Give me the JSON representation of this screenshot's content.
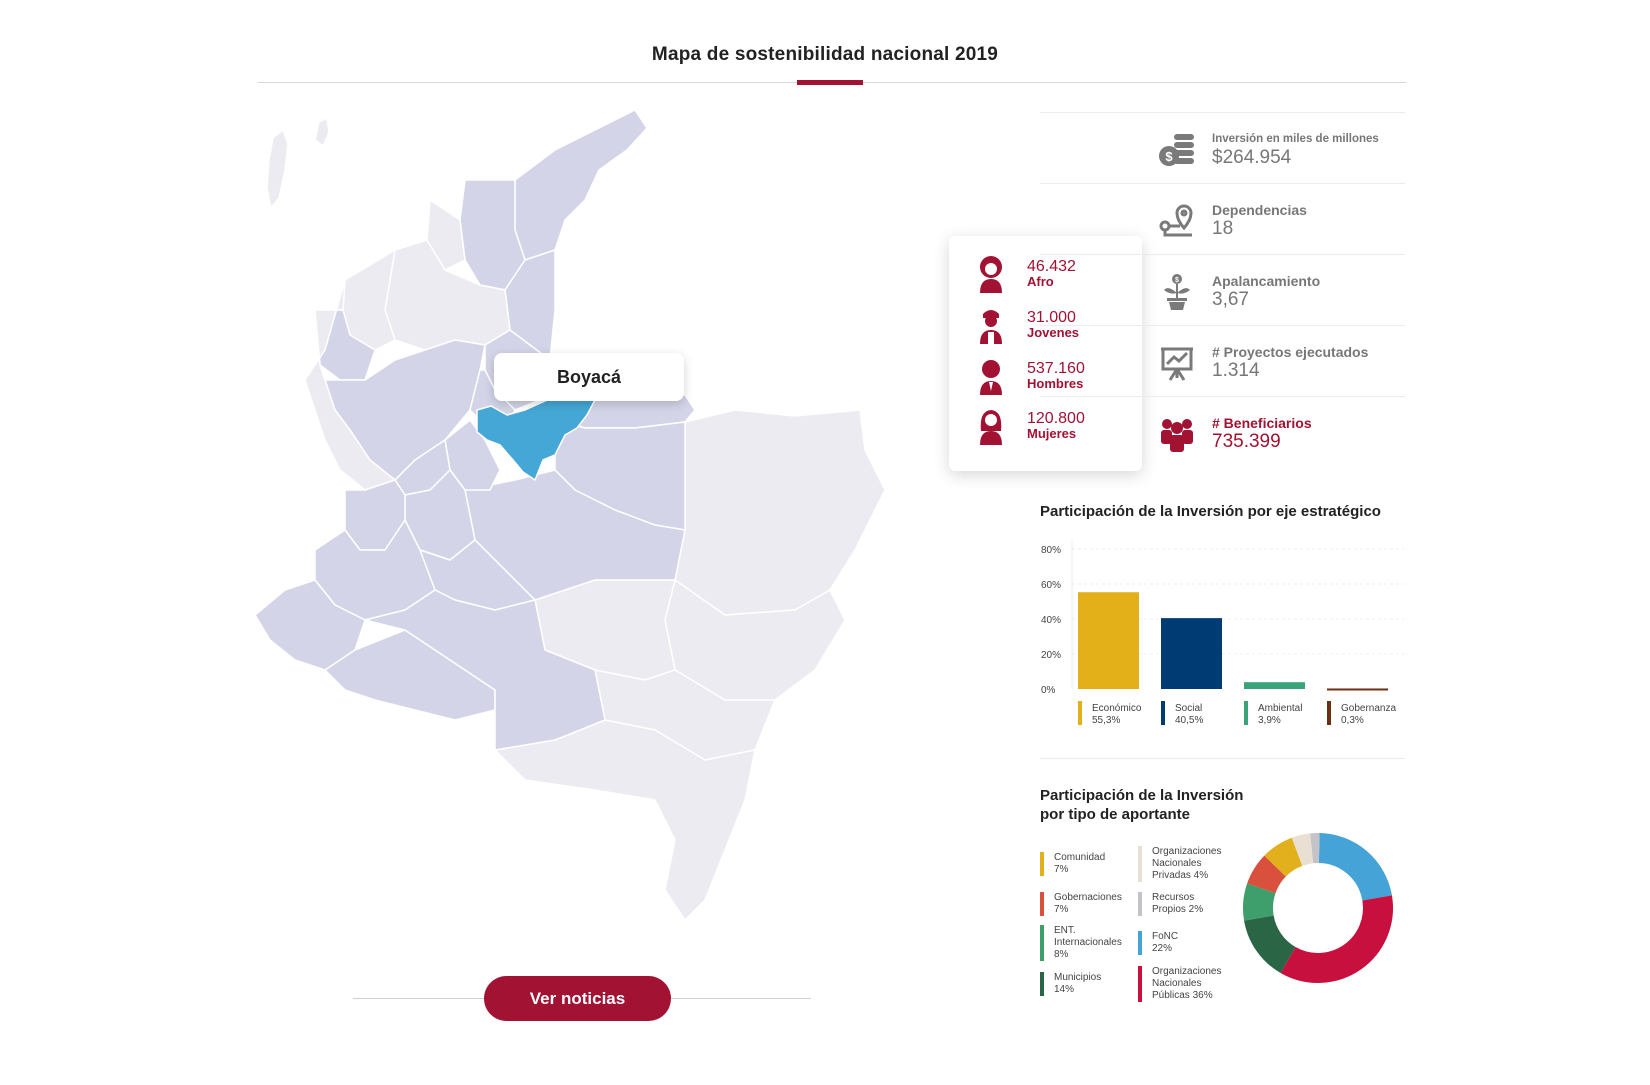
{
  "title": "Mapa de sostenibilidad nacional 2019",
  "selected_region": "Boyacá",
  "button": "Ver noticias",
  "demographics": [
    {
      "value": "46.432",
      "label": "Afro",
      "icon": "afro-person-icon"
    },
    {
      "value": "31.000",
      "label": "Jovenes",
      "icon": "young-person-icon"
    },
    {
      "value": "537.160",
      "label": "Hombres",
      "icon": "man-icon"
    },
    {
      "value": "120.800",
      "label": "Mujeres",
      "icon": "woman-icon"
    }
  ],
  "stats": [
    {
      "label": "Inversión en miles de millones",
      "value": "$264.954",
      "icon": "coins-icon"
    },
    {
      "label": "Dependencias",
      "value": "18",
      "icon": "location-route-icon"
    },
    {
      "label": "Apalancamiento",
      "value": "3,67",
      "icon": "money-plant-icon"
    },
    {
      "label": "# Proyectos ejecutados",
      "value": "1.314",
      "icon": "presentation-chart-icon"
    },
    {
      "label": "# Beneficiarios",
      "value": "735.399",
      "icon": "people-group-icon"
    }
  ],
  "colors": {
    "accent": "#a11233",
    "map_region": "#d3d4e8",
    "map_other": "#ebebf1",
    "map_selected": "#45a7d5"
  },
  "chart_data": [
    {
      "type": "bar",
      "title": "Participación de la Inversión por eje estratégico",
      "categories": [
        "Económico",
        "Social",
        "Ambiental",
        "Gobernanza"
      ],
      "values": [
        55.3,
        40.5,
        3.9,
        0.3
      ],
      "value_labels": [
        "55,3%",
        "40,5%",
        "3,9%",
        "0,3%"
      ],
      "colors": [
        "#e3b019",
        "#003b73",
        "#3ba37a",
        "#6b2f14"
      ],
      "yticks": [
        "80%",
        "60%",
        "40%",
        "20%",
        "0%"
      ],
      "ylim": [
        0,
        80
      ],
      "grid": true
    },
    {
      "type": "pie",
      "title": "Participación de la Inversión\npor tipo de aportante",
      "title_lines": [
        "Participación de la Inversión",
        "por tipo de aportante"
      ],
      "slices": [
        {
          "label": "FoNC",
          "pct_label": "22%",
          "value": 22,
          "color": "#46a3d7"
        },
        {
          "label": "Organizaciones Nacionales Públicas",
          "pct_label": "36%",
          "value": 36,
          "color": "#c8103e"
        },
        {
          "label": "Municipios",
          "pct_label": "14%",
          "value": 14,
          "color": "#2a6645"
        },
        {
          "label": "ENT. Internacionales",
          "pct_label": "8%",
          "value": 8,
          "color": "#3e9e6c"
        },
        {
          "label": "Gobernaciones",
          "pct_label": "7%",
          "value": 7,
          "color": "#d9503c"
        },
        {
          "label": "Comunidad",
          "pct_label": "7%",
          "value": 7,
          "color": "#e1b01c"
        },
        {
          "label": "Organizaciones Nacionales Privadas",
          "pct_label": "4%",
          "value": 4,
          "color": "#e9dfd2"
        },
        {
          "label": "Recursos Propios",
          "pct_label": "2%",
          "value": 2,
          "color": "#c4c4c8"
        }
      ],
      "legend": [
        {
          "lines": [
            "Comunidad",
            "7%"
          ],
          "color": "#e1b01c"
        },
        {
          "lines": [
            "Gobernaciones",
            "7%"
          ],
          "color": "#d9503c"
        },
        {
          "lines": [
            "ENT.",
            "Internacionales",
            "8%"
          ],
          "color": "#3e9e6c"
        },
        {
          "lines": [
            "Municipios",
            "14%"
          ],
          "color": "#2a6645"
        },
        {
          "lines": [
            "Organizaciones",
            "Nacionales",
            "Privadas 4%"
          ],
          "color": "#e9dfd2"
        },
        {
          "lines": [
            "Recursos",
            "Propios 2%"
          ],
          "color": "#c4c4c8"
        },
        {
          "lines": [
            "FoNC",
            "22%"
          ],
          "color": "#46a3d7"
        },
        {
          "lines": [
            "Organizaciones",
            "Nacionales",
            "Públicas 36%"
          ],
          "color": "#c8103e"
        }
      ]
    }
  ]
}
